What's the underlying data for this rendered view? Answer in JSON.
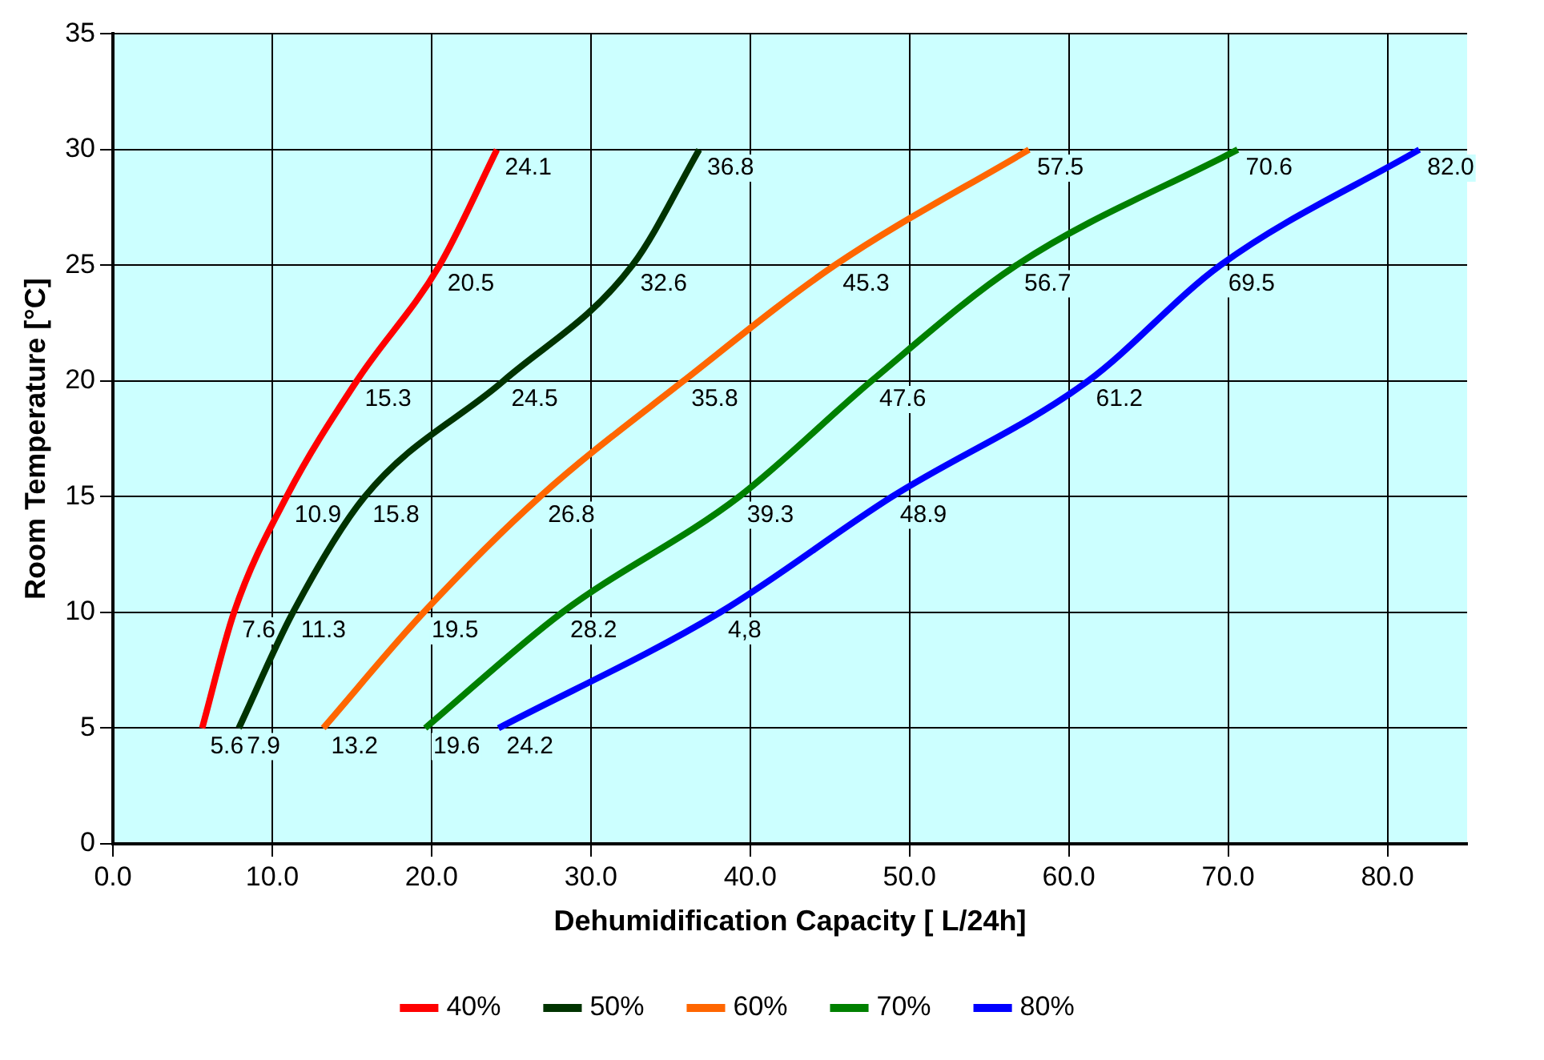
{
  "chart_data": {
    "type": "line",
    "xlabel": "Dehumidification Capacity [ L/24h]",
    "ylabel": "Room Temperature [°C]",
    "xlim": [
      0,
      85
    ],
    "xticks": [
      {
        "value": 0,
        "label": "0.0"
      },
      {
        "value": 10,
        "label": "10.0"
      },
      {
        "value": 20,
        "label": "20.0"
      },
      {
        "value": 30,
        "label": "30.0"
      },
      {
        "value": 40,
        "label": "40.0"
      },
      {
        "value": 50,
        "label": "50.0"
      },
      {
        "value": 60,
        "label": "60.0"
      },
      {
        "value": 70,
        "label": "70.0"
      },
      {
        "value": 80,
        "label": "80.0"
      }
    ],
    "ylim": [
      0,
      35
    ],
    "yticks": [
      0,
      5,
      10,
      15,
      20,
      25,
      30,
      35
    ],
    "grid": true,
    "legend": "bottom",
    "marker": "none",
    "line_style": "solid",
    "series": [
      {
        "name": "40%",
        "color": "#ff0000",
        "x": [
          5.6,
          7.6,
          10.9,
          15.3,
          20.5,
          24.1
        ],
        "values": [
          5,
          10,
          15,
          20,
          25,
          30
        ]
      },
      {
        "name": "50%",
        "color": "#003300",
        "x": [
          7.9,
          11.3,
          15.8,
          24.5,
          32.6,
          36.8
        ],
        "values": [
          5,
          10,
          15,
          20,
          25,
          30
        ]
      },
      {
        "name": "60%",
        "color": "#ff6600",
        "x": [
          13.2,
          19.5,
          26.8,
          35.8,
          45.3,
          57.5
        ],
        "values": [
          5,
          10,
          15,
          20,
          25,
          30
        ]
      },
      {
        "name": "70%",
        "color": "#008000",
        "x": [
          19.6,
          28.2,
          39.3,
          47.6,
          56.7,
          70.6
        ],
        "values": [
          5,
          10,
          15,
          20,
          25,
          30
        ]
      },
      {
        "name": "80%",
        "color": "#0000ff",
        "x": [
          24.2,
          38.1,
          48.9,
          61.2,
          69.5,
          82.0
        ],
        "values": [
          5,
          10,
          15,
          20,
          25,
          30
        ]
      }
    ],
    "annotations": [
      {
        "text": "5.6",
        "x": 5.6,
        "y": 5
      },
      {
        "text": "7.6",
        "x": 7.6,
        "y": 10
      },
      {
        "text": "10.9",
        "x": 10.9,
        "y": 15
      },
      {
        "text": "15.3",
        "x": 15.3,
        "y": 20
      },
      {
        "text": "20.5",
        "x": 20.5,
        "y": 25
      },
      {
        "text": "24.1",
        "x": 24.1,
        "y": 30
      },
      {
        "text": "7.9",
        "x": 7.9,
        "y": 5
      },
      {
        "text": "11.3",
        "x": 11.3,
        "y": 10
      },
      {
        "text": "15.8",
        "x": 15.8,
        "y": 15
      },
      {
        "text": "24.5",
        "x": 24.5,
        "y": 20
      },
      {
        "text": "32.6",
        "x": 32.6,
        "y": 25
      },
      {
        "text": "36.8",
        "x": 36.8,
        "y": 30
      },
      {
        "text": "13.2",
        "x": 13.2,
        "y": 5
      },
      {
        "text": "19.5",
        "x": 19.5,
        "y": 10
      },
      {
        "text": "26.8",
        "x": 26.8,
        "y": 15
      },
      {
        "text": "35.8",
        "x": 35.8,
        "y": 20
      },
      {
        "text": "45.3",
        "x": 45.3,
        "y": 25
      },
      {
        "text": "57.5",
        "x": 57.5,
        "y": 30
      },
      {
        "text": "19.6",
        "x": 19.6,
        "y": 5
      },
      {
        "text": "28.2",
        "x": 28.2,
        "y": 10
      },
      {
        "text": "39.3",
        "x": 39.3,
        "y": 15
      },
      {
        "text": "47.6",
        "x": 47.6,
        "y": 20
      },
      {
        "text": "56.7",
        "x": 56.7,
        "y": 25
      },
      {
        "text": "70.6",
        "x": 70.6,
        "y": 30
      },
      {
        "text": "24.2",
        "x": 24.2,
        "y": 5
      },
      {
        "text": "4,8",
        "x": 38.1,
        "y": 10
      },
      {
        "text": "48.9",
        "x": 48.9,
        "y": 15
      },
      {
        "text": "61.2",
        "x": 61.2,
        "y": 20
      },
      {
        "text": "69.5",
        "x": 69.5,
        "y": 25
      },
      {
        "text": "82.0",
        "x": 82.0,
        "y": 30
      }
    ]
  }
}
